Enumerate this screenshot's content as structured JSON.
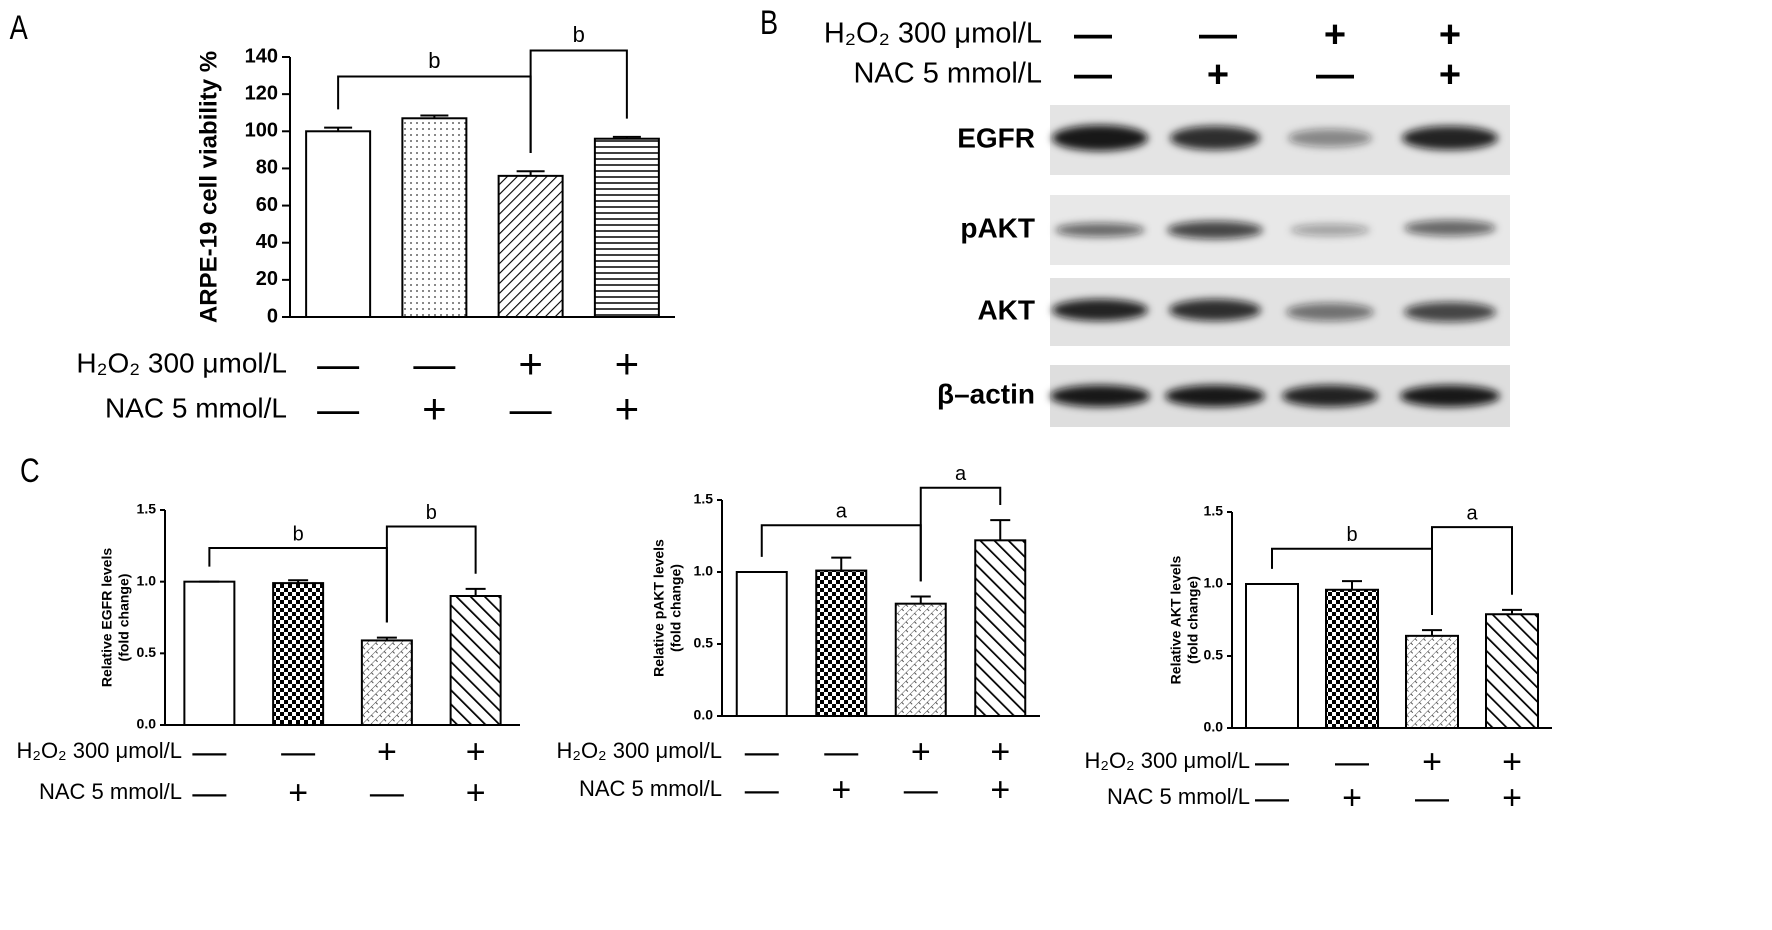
{
  "panel_labels": [
    "A",
    "B",
    "C"
  ],
  "blot": {
    "conditions": [
      {
        "name": "H₂O₂ 300 μmol/L",
        "signs": [
          "—",
          "—",
          "+",
          "+"
        ]
      },
      {
        "name": "NAC 5 mmol/L",
        "signs": [
          "—",
          "+",
          "—",
          "+"
        ]
      }
    ],
    "rows": [
      "EGFR",
      "pAKT",
      "AKT",
      "β–actin"
    ]
  },
  "chart_data": [
    {
      "type": "bar",
      "ylabel": "ARPE-19 cell viability %",
      "values": [
        100,
        107,
        76,
        96
      ],
      "errors": [
        2,
        1.5,
        2.5,
        1
      ],
      "patterns": [
        "none",
        "dots",
        "diag",
        "hlines"
      ],
      "ylim": [
        0,
        140
      ],
      "yticks": [
        0,
        20,
        40,
        60,
        80,
        100,
        120,
        140
      ],
      "conditions": [
        {
          "name": "H₂O₂ 300 μmol/L",
          "signs": [
            "—",
            "—",
            "+",
            "+"
          ]
        },
        {
          "name": "NAC 5 mmol/L",
          "signs": [
            "—",
            "+",
            "—",
            "+"
          ]
        }
      ],
      "brackets": [
        {
          "label": "b",
          "from": 0,
          "to": 2
        },
        {
          "label": "b",
          "from": 2,
          "to": 3
        }
      ]
    },
    {
      "type": "bar",
      "ylabel": [
        "Relative EGFR levels",
        "(fold change)"
      ],
      "values": [
        1.0,
        0.99,
        0.59,
        0.9
      ],
      "errors": [
        0,
        0.02,
        0.02,
        0.05
      ],
      "patterns": [
        "none",
        "checker",
        "fine",
        "backdiag"
      ],
      "ylim": [
        0,
        1.5
      ],
      "yticks": [
        {
          "value": 0,
          "label": "0.0"
        },
        0.5,
        {
          "value": 1,
          "label": "1.0"
        },
        1.5
      ],
      "conditions": [
        {
          "name": "H₂O₂ 300 μmol/L",
          "signs": [
            "—",
            "—",
            "+",
            "+"
          ]
        },
        {
          "name": "NAC 5 mmol/L",
          "signs": [
            "—",
            "+",
            "—",
            "+"
          ]
        }
      ],
      "brackets": [
        {
          "label": "b",
          "from": 0,
          "to": 2
        },
        {
          "label": "b",
          "from": 2,
          "to": 3
        }
      ]
    },
    {
      "type": "bar",
      "ylabel": [
        "Relative pAKT levels",
        "(fold change)"
      ],
      "values": [
        1.0,
        1.01,
        0.78,
        1.22
      ],
      "errors": [
        0,
        0.09,
        0.05,
        0.14
      ],
      "patterns": [
        "none",
        "checker",
        "fine",
        "backdiag"
      ],
      "ylim": [
        0,
        1.5
      ],
      "yticks": [
        {
          "value": 0,
          "label": "0.0"
        },
        0.5,
        {
          "value": 1,
          "label": "1.0"
        },
        1.5
      ],
      "conditions": [
        {
          "name": "H₂O₂ 300 μmol/L",
          "signs": [
            "—",
            "—",
            "+",
            "+"
          ]
        },
        {
          "name": "NAC 5 mmol/L",
          "signs": [
            "—",
            "+",
            "—",
            "+"
          ]
        }
      ],
      "brackets": [
        {
          "label": "a",
          "from": 0,
          "to": 2
        },
        {
          "label": "a",
          "from": 2,
          "to": 3
        }
      ]
    },
    {
      "type": "bar",
      "ylabel": [
        "Relative AKT levels",
        "(fold change)"
      ],
      "values": [
        1.0,
        0.96,
        0.64,
        0.79
      ],
      "errors": [
        0,
        0.06,
        0.04,
        0.03
      ],
      "patterns": [
        "none",
        "checker",
        "fine",
        "backdiag"
      ],
      "ylim": [
        0,
        1.5
      ],
      "yticks": [
        {
          "value": 0,
          "label": "0.0"
        },
        0.5,
        {
          "value": 1,
          "label": "1.0"
        },
        1.5
      ],
      "conditions": [
        {
          "name": "H₂O₂ 300 μmol/L",
          "signs": [
            "—",
            "—",
            "+",
            "+"
          ]
        },
        {
          "name": "NAC 5 mmol/L",
          "signs": [
            "—",
            "+",
            "—",
            "+"
          ]
        }
      ],
      "brackets": [
        {
          "label": "b",
          "from": 0,
          "to": 2
        },
        {
          "label": "a",
          "from": 2,
          "to": 3
        }
      ]
    }
  ]
}
